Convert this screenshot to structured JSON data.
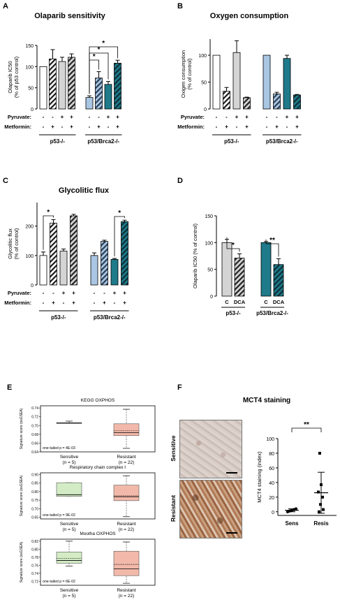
{
  "colors": {
    "white": "#ffffff",
    "gray": "#d4d4d4",
    "light_blue": "#a9c6e3",
    "teal": "#1f7a8a",
    "green_box": "#d3ecc5",
    "salmon_box": "#f2b9aa",
    "tissue_light": "#d8cfc9",
    "tissue_brown": "#a8704e"
  },
  "panel_letters": {
    "a": "A",
    "b": "B",
    "c": "C",
    "d": "D",
    "e": "E",
    "f": "F"
  },
  "treatment_rows": {
    "pyruvate_label": "Pyruvate:",
    "metformin_label": "Metformin:"
  },
  "group_labels": {
    "p53": "p53-/-",
    "brca2": "p53/Brca2-/-"
  },
  "chart_data": [
    {
      "id": "A",
      "type": "bar",
      "title": "Olaparib sensitivity",
      "ylabel_line1": "Olaparib IC50",
      "ylabel_line2": "(% of p53 control)",
      "ylim": [
        0,
        150
      ],
      "yticks": [
        "0",
        "50",
        "100",
        "150"
      ],
      "pyruvate": [
        "-",
        "-",
        "+",
        "+",
        "-",
        "-",
        "+",
        "+"
      ],
      "metformin": [
        "-",
        "+",
        "-",
        "+",
        "-",
        "+",
        "-",
        "+"
      ],
      "values": [
        100,
        118,
        112,
        122,
        27,
        73,
        58,
        108
      ],
      "errors": [
        0,
        22,
        10,
        8,
        4,
        15,
        7,
        7
      ],
      "fills": [
        "white",
        "white",
        "gray",
        "gray",
        "light_blue",
        "light_blue",
        "teal",
        "teal"
      ],
      "hatched": [
        false,
        true,
        false,
        true,
        false,
        true,
        false,
        true
      ],
      "significance": [
        {
          "label": "*",
          "from": 4,
          "to": 5
        },
        {
          "label": "*",
          "from": 4,
          "to": 6
        },
        {
          "label": "*",
          "from": 4,
          "to": 7
        }
      ]
    },
    {
      "id": "B",
      "type": "bar",
      "title": "Oxygen consumption",
      "ylabel_line1": "Oxigen consumption",
      "ylabel_line2": "(% of control)",
      "ylim": [
        0,
        130
      ],
      "yticks": [
        "0",
        "50",
        "100"
      ],
      "pyruvate": [
        "-",
        "-",
        "+",
        "+",
        "-",
        "-",
        "+",
        "+"
      ],
      "metformin": [
        "-",
        "+",
        "-",
        "+",
        "-",
        "+",
        "-",
        "+"
      ],
      "values": [
        100,
        33,
        105,
        21,
        100,
        28,
        94,
        26
      ],
      "errors": [
        0,
        7,
        22,
        1,
        0,
        3,
        6,
        1
      ],
      "fills": [
        "white",
        "white",
        "gray",
        "gray",
        "light_blue",
        "light_blue",
        "teal",
        "teal"
      ],
      "hatched": [
        false,
        true,
        false,
        true,
        false,
        true,
        false,
        true
      ],
      "significance": []
    },
    {
      "id": "C",
      "type": "bar",
      "title": "Glycolitic flux",
      "ylabel_line1": "Glycolitic flux",
      "ylabel_line2": "(% of control)",
      "ylim": [
        0,
        280
      ],
      "yticks": [
        "0",
        "100",
        "200"
      ],
      "pyruvate": [
        "-",
        "-",
        "+",
        "+",
        "-",
        "-",
        "+",
        "+"
      ],
      "metformin": [
        "-",
        "+",
        "-",
        "+",
        "-",
        "+",
        "-",
        "+"
      ],
      "values": [
        100,
        210,
        115,
        235,
        100,
        148,
        87,
        215
      ],
      "errors": [
        12,
        12,
        7,
        5,
        9,
        4,
        3,
        5
      ],
      "fills": [
        "white",
        "white",
        "gray",
        "gray",
        "light_blue",
        "light_blue",
        "teal",
        "teal"
      ],
      "hatched": [
        false,
        true,
        false,
        true,
        false,
        true,
        false,
        true
      ],
      "significance": [
        {
          "label": "*",
          "from": 0,
          "to": 1
        },
        {
          "label": "*",
          "from": 6,
          "to": 7
        }
      ]
    },
    {
      "id": "D",
      "type": "bar",
      "title": "",
      "ylabel_line1": "Olaparib IC50 (% of control)",
      "ylim": [
        0,
        150
      ],
      "yticks": [
        "0",
        "50",
        "100",
        "150"
      ],
      "categories": [
        "C",
        "DCA",
        "C",
        "DCA"
      ],
      "values": [
        100,
        71,
        100,
        59
      ],
      "errors": [
        6,
        8,
        2,
        11
      ],
      "fills": [
        "gray",
        "gray",
        "teal",
        "teal"
      ],
      "hatched": [
        false,
        true,
        false,
        true
      ],
      "significance": [
        {
          "label": "*",
          "from": 0,
          "to": 1
        },
        {
          "label": "**",
          "from": 2,
          "to": 3
        }
      ]
    },
    {
      "id": "E",
      "type": "box",
      "ylabel": "Signature score (ssGSEA)",
      "categories": [
        "Sensitive",
        "Resistant"
      ],
      "ns": [
        "(n = 5)",
        "(n = 22)"
      ],
      "panels": [
        {
          "title": "KEGG OXPHOS",
          "ylim": [
            0.64,
            0.745
          ],
          "yticks": [
            "0.74",
            "0.72",
            "0.70",
            "0.68",
            "0.66",
            "0.64"
          ],
          "pval": "one-tailed p = 4E-03",
          "boxes": [
            {
              "wmin": 0.706,
              "q1": 0.706,
              "median": 0.706,
              "mean": 0.706,
              "q3": 0.706,
              "wmax": 0.71
            },
            {
              "wmin": 0.648,
              "q1": 0.677,
              "median": 0.684,
              "mean": 0.688,
              "q3": 0.704,
              "wmax": 0.737
            }
          ]
        },
        {
          "title": "Respiratory chain complex I",
          "ylim": [
            0.64,
            0.91
          ],
          "yticks": [
            "0.90",
            "0.85",
            "0.80",
            "0.75",
            "0.70",
            "0.65"
          ],
          "pval": "one-tailed p = 9E-02",
          "boxes": [
            {
              "wmin": 0.772,
              "q1": 0.772,
              "median": 0.782,
              "mean": 0.782,
              "q3": 0.852,
              "wmax": 0.852
            },
            {
              "wmin": 0.653,
              "q1": 0.747,
              "median": 0.77,
              "mean": 0.775,
              "q3": 0.838,
              "wmax": 0.893
            }
          ]
        },
        {
          "title": "Mootha OXPHOS",
          "ylim": [
            0.71,
            0.825
          ],
          "yticks": [
            "0.82",
            "0.80",
            "0.78",
            "0.76",
            "0.74",
            "0.72"
          ],
          "pval": "one-tailed p = 6E-02",
          "boxes": [
            {
              "wmin": 0.758,
              "q1": 0.765,
              "median": 0.772,
              "mean": 0.777,
              "q3": 0.793,
              "wmax": 0.82
            },
            {
              "wmin": 0.715,
              "q1": 0.734,
              "median": 0.751,
              "mean": 0.762,
              "q3": 0.795,
              "wmax": 0.818
            }
          ]
        }
      ]
    },
    {
      "id": "F",
      "type": "scatter",
      "title": "MCT4 staining",
      "ylabel": "MCT4 staining (index)",
      "ylim": [
        -5,
        100
      ],
      "yticks": [
        "0",
        "20",
        "40",
        "60",
        "80",
        "100"
      ],
      "categories": [
        "Sens",
        "Resis"
      ],
      "row_labels": [
        "Sensitive",
        "Resistant"
      ],
      "sens_points": [
        0,
        1,
        2,
        3,
        4
      ],
      "resis_points": [
        0,
        3,
        10,
        20,
        27,
        37,
        80
      ],
      "sens_mean": 2,
      "sens_sd": 2,
      "resis_mean": 26,
      "resis_sd": 28,
      "significance": [
        {
          "label": "**",
          "from": 0,
          "to": 1
        }
      ]
    }
  ]
}
